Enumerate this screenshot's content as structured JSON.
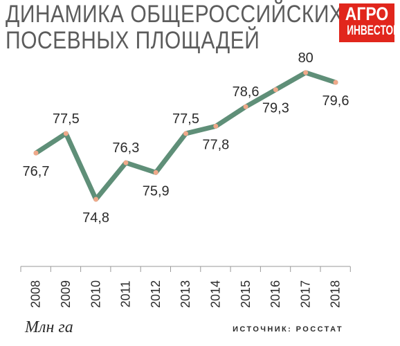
{
  "chart_data": {
    "type": "line",
    "title": "ДИНАМИКА ОБЩЕРОССИЙСКИХ ПОСЕВНЫХ ПЛОЩАДЕЙ",
    "categories": [
      "2008",
      "2009",
      "2010",
      "2011",
      "2012",
      "2013",
      "2014",
      "2015",
      "2016",
      "2017",
      "2018"
    ],
    "values": [
      76.7,
      77.5,
      74.8,
      76.3,
      75.9,
      77.5,
      77.8,
      78.6,
      79.3,
      80,
      79.6
    ],
    "labels": [
      "76,7",
      "77,5",
      "74,8",
      "76,3",
      "75,9",
      "77,5",
      "77,8",
      "78,6",
      "79,3",
      "80",
      "79,6"
    ],
    "label_position": [
      "below",
      "above",
      "below",
      "above",
      "below",
      "above",
      "below",
      "above",
      "below",
      "above",
      "below"
    ],
    "ylabel": "Млн га",
    "grid": false,
    "line_color": "#5f8f78",
    "marker_color": "#f0a98a"
  },
  "title_lines": [
    "ДИНАМИКА ОБЩЕРОССИЙСКИХ",
    "ПОСЕВНЫХ ПЛОЩАДЕЙ"
  ],
  "logo": {
    "line1": "АГРО",
    "line2": "ИНВЕСТОР",
    "color": "#e1261c"
  },
  "unit": "Млн га",
  "source": "ИСТОЧНИК: РОССТАТ"
}
